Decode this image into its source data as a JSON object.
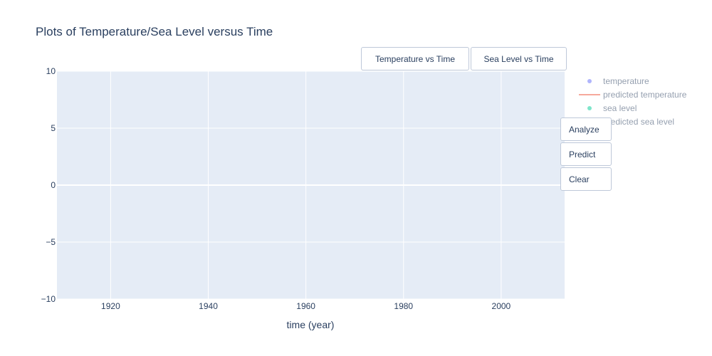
{
  "chart_data": {
    "type": "scatter",
    "title": "Plots of Temperature/Sea Level versus Time",
    "xlabel": "time (year)",
    "ylabel": "",
    "xlim": [
      1909,
      2013
    ],
    "ylim": [
      -10,
      10
    ],
    "x_ticks": [
      1920,
      1940,
      1960,
      1980,
      2000
    ],
    "y_ticks": [
      10,
      5,
      0,
      -5,
      -10
    ],
    "y_tick_labels": [
      "10",
      "5",
      "0",
      "−5",
      "−10"
    ],
    "grid": true,
    "legend_position": "top-right",
    "series": [
      {
        "name": "temperature",
        "mode": "markers",
        "color": "#636efa",
        "x": [],
        "y": []
      },
      {
        "name": "predicted temperature",
        "mode": "lines",
        "color": "#ef553b",
        "x": [],
        "y": []
      },
      {
        "name": "sea level",
        "mode": "markers",
        "color": "#00cc96",
        "x": [],
        "y": []
      },
      {
        "name": "predicted sea level",
        "mode": "lines",
        "color": "#ab63fa",
        "x": [],
        "y": []
      }
    ]
  },
  "buttons": {
    "temperature_vs_time": "Temperature vs Time",
    "sea_level_vs_time": "Sea Level vs Time",
    "analyze": "Analyze",
    "predict": "Predict",
    "clear": "Clear"
  },
  "colors": {
    "plot_background": "#e5ecf6",
    "gridline": "#ffffff",
    "text": "#2a3f5f"
  }
}
